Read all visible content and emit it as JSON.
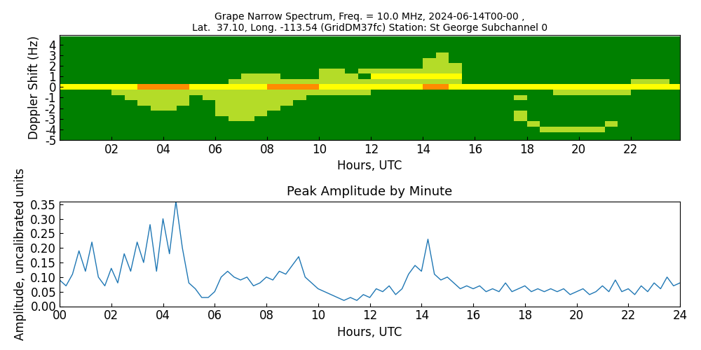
{
  "chart_data": [
    {
      "type": "heatmap",
      "title": "Grape Narrow Spectrum, Freq. = 10.0 MHz, 2024-06-14T00-00 ,\nLat.  37.10, Long. -113.54 (GridDM37fc) Station: St George Subchannel 0",
      "x_label": "Hours, UTC",
      "y_label": "Doppler Shift (Hz)",
      "x": [
        0.25,
        0.75,
        1.25,
        1.75,
        2.25,
        2.75,
        3.25,
        3.75,
        4.25,
        4.75,
        5.25,
        5.75,
        6.25,
        6.75,
        7.25,
        7.75,
        8.25,
        8.75,
        9.25,
        9.75,
        10.25,
        10.75,
        11.25,
        11.75,
        12.25,
        12.75,
        13.25,
        13.75,
        14.25,
        14.75,
        15.25,
        15.75,
        16.25,
        16.75,
        17.25,
        17.75,
        18.25,
        18.75,
        19.25,
        19.75,
        20.25,
        20.75,
        21.25,
        21.75,
        22.25,
        22.75,
        23.25,
        23.75
      ],
      "y": [
        -5,
        -4.5,
        -4,
        -3.5,
        -3,
        -2.5,
        -2,
        -1.5,
        -1,
        -0.5,
        0,
        0.5,
        1,
        1.5,
        2,
        2.5,
        3,
        3.5,
        4,
        4.5
      ],
      "value_range": [
        0,
        3
      ],
      "cells": [
        [
          0,
          0,
          0,
          0,
          0,
          0,
          0,
          0,
          0,
          0,
          0,
          0,
          0,
          0,
          0,
          0,
          0,
          0,
          0,
          0,
          0,
          0,
          0,
          0,
          0,
          0,
          0,
          0,
          0,
          0,
          0,
          0,
          0,
          0,
          0,
          0,
          0,
          0,
          0,
          0,
          0,
          0,
          0,
          0,
          0,
          0,
          0,
          0
        ],
        [
          0,
          0,
          0,
          0,
          0,
          0,
          0,
          0,
          0,
          0,
          0,
          0,
          0,
          0,
          0,
          0,
          0,
          0,
          0,
          0,
          0,
          0,
          0,
          0,
          0,
          0,
          0,
          0,
          0,
          0,
          0,
          0,
          0,
          0,
          0,
          0,
          0,
          0,
          0,
          0,
          0,
          0,
          0,
          0,
          0,
          0,
          0,
          0
        ],
        [
          0,
          0,
          0,
          0,
          0,
          0,
          0,
          0,
          0,
          0,
          0,
          0,
          0,
          0,
          0,
          0,
          0,
          0,
          0,
          0,
          0,
          0,
          0,
          0,
          0,
          0,
          0,
          0,
          0,
          0,
          0,
          0,
          0,
          0,
          0,
          0,
          0,
          1,
          1,
          1,
          1,
          1,
          0,
          0,
          0,
          0,
          0,
          0
        ],
        [
          0,
          0,
          0,
          0,
          0,
          0,
          0,
          0,
          0,
          0,
          0,
          0,
          0,
          0,
          0,
          0,
          0,
          0,
          0,
          0,
          0,
          0,
          0,
          0,
          0,
          0,
          0,
          0,
          0,
          0,
          0,
          0,
          0,
          0,
          0,
          0,
          1,
          0,
          0,
          0,
          0,
          0,
          1,
          0,
          0,
          0,
          0,
          0
        ],
        [
          0,
          0,
          0,
          0,
          0,
          0,
          0,
          0,
          0,
          0,
          0,
          0,
          0,
          1,
          1,
          0,
          0,
          0,
          0,
          0,
          0,
          0,
          0,
          0,
          0,
          0,
          0,
          0,
          0,
          0,
          0,
          0,
          0,
          0,
          0,
          1,
          0,
          0,
          0,
          0,
          0,
          0,
          0,
          0,
          0,
          0,
          0,
          0
        ],
        [
          0,
          0,
          0,
          0,
          0,
          0,
          0,
          0,
          0,
          0,
          0,
          0,
          1,
          1,
          1,
          1,
          0,
          0,
          0,
          0,
          0,
          0,
          0,
          0,
          0,
          0,
          0,
          0,
          0,
          0,
          0,
          0,
          0,
          0,
          0,
          1,
          0,
          0,
          0,
          0,
          0,
          0,
          0,
          0,
          0,
          0,
          0,
          0
        ],
        [
          0,
          0,
          0,
          0,
          0,
          0,
          0,
          1,
          1,
          0,
          0,
          0,
          1,
          1,
          1,
          1,
          1,
          0,
          0,
          0,
          0,
          0,
          0,
          0,
          0,
          0,
          0,
          0,
          0,
          0,
          0,
          0,
          0,
          0,
          0,
          0,
          0,
          0,
          0,
          0,
          0,
          0,
          0,
          0,
          0,
          0,
          0,
          0
        ],
        [
          0,
          0,
          0,
          0,
          0,
          0,
          1,
          1,
          1,
          1,
          0,
          0,
          1,
          1,
          1,
          1,
          1,
          1,
          0,
          0,
          0,
          0,
          0,
          0,
          0,
          0,
          0,
          0,
          0,
          0,
          0,
          0,
          0,
          0,
          0,
          0,
          0,
          0,
          0,
          0,
          0,
          0,
          0,
          0,
          0,
          0,
          0,
          0
        ],
        [
          0,
          0,
          0,
          0,
          0,
          1,
          1,
          1,
          1,
          1,
          0,
          1,
          1,
          1,
          1,
          1,
          1,
          1,
          1,
          0,
          0,
          0,
          0,
          0,
          0,
          0,
          0,
          0,
          0,
          0,
          0,
          0,
          0,
          0,
          0,
          1,
          0,
          0,
          0,
          0,
          0,
          0,
          0,
          0,
          0,
          0,
          0,
          0
        ],
        [
          0,
          0,
          0,
          0,
          1,
          1,
          1,
          1,
          1,
          1,
          1,
          1,
          1,
          1,
          1,
          1,
          1,
          1,
          1,
          1,
          1,
          1,
          1,
          1,
          0,
          0,
          0,
          0,
          0,
          0,
          0,
          0,
          0,
          0,
          0,
          0,
          0,
          0,
          1,
          1,
          1,
          1,
          1,
          1,
          0,
          0,
          0,
          0
        ],
        [
          2,
          2,
          2,
          2,
          2,
          2,
          3,
          3,
          3,
          3,
          2,
          2,
          2,
          2,
          2,
          2,
          3,
          3,
          3,
          3,
          2,
          2,
          2,
          2,
          2,
          2,
          2,
          2,
          3,
          3,
          2,
          2,
          2,
          2,
          2,
          2,
          2,
          2,
          2,
          2,
          2,
          2,
          2,
          2,
          2,
          2,
          2,
          2
        ],
        [
          0,
          0,
          0,
          0,
          0,
          0,
          0,
          0,
          0,
          0,
          0,
          0,
          0,
          1,
          1,
          1,
          1,
          1,
          1,
          1,
          1,
          1,
          1,
          1,
          1,
          1,
          1,
          1,
          1,
          1,
          1,
          0,
          0,
          0,
          0,
          0,
          0,
          0,
          0,
          0,
          0,
          0,
          0,
          0,
          1,
          1,
          1,
          0
        ],
        [
          0,
          0,
          0,
          0,
          0,
          0,
          0,
          0,
          0,
          0,
          0,
          0,
          0,
          0,
          1,
          1,
          1,
          0,
          0,
          0,
          1,
          1,
          1,
          0,
          2,
          2,
          2,
          2,
          2,
          2,
          2,
          0,
          0,
          0,
          0,
          0,
          0,
          0,
          0,
          0,
          0,
          0,
          0,
          0,
          0,
          0,
          0,
          0
        ],
        [
          0,
          0,
          0,
          0,
          0,
          0,
          0,
          0,
          0,
          0,
          0,
          0,
          0,
          0,
          0,
          0,
          0,
          0,
          0,
          0,
          1,
          1,
          0,
          1,
          1,
          1,
          1,
          1,
          1,
          1,
          1,
          0,
          0,
          0,
          0,
          0,
          0,
          0,
          0,
          0,
          0,
          0,
          0,
          0,
          0,
          0,
          0,
          0
        ],
        [
          0,
          0,
          0,
          0,
          0,
          0,
          0,
          0,
          0,
          0,
          0,
          0,
          0,
          0,
          0,
          0,
          0,
          0,
          0,
          0,
          0,
          0,
          0,
          0,
          0,
          0,
          0,
          0,
          1,
          1,
          1,
          0,
          0,
          0,
          0,
          0,
          0,
          0,
          0,
          0,
          0,
          0,
          0,
          0,
          0,
          0,
          0,
          0
        ],
        [
          0,
          0,
          0,
          0,
          0,
          0,
          0,
          0,
          0,
          0,
          0,
          0,
          0,
          0,
          0,
          0,
          0,
          0,
          0,
          0,
          0,
          0,
          0,
          0,
          0,
          0,
          0,
          0,
          1,
          1,
          0,
          0,
          0,
          0,
          0,
          0,
          0,
          0,
          0,
          0,
          0,
          0,
          0,
          0,
          0,
          0,
          0,
          0
        ],
        [
          0,
          0,
          0,
          0,
          0,
          0,
          0,
          0,
          0,
          0,
          0,
          0,
          0,
          0,
          0,
          0,
          0,
          0,
          0,
          0,
          0,
          0,
          0,
          0,
          0,
          0,
          0,
          0,
          0,
          1,
          0,
          0,
          0,
          0,
          0,
          0,
          0,
          0,
          0,
          0,
          0,
          0,
          0,
          0,
          0,
          0,
          0,
          0
        ],
        [
          0,
          0,
          0,
          0,
          0,
          0,
          0,
          0,
          0,
          0,
          0,
          0,
          0,
          0,
          0,
          0,
          0,
          0,
          0,
          0,
          0,
          0,
          0,
          0,
          0,
          0,
          0,
          0,
          0,
          0,
          0,
          0,
          0,
          0,
          0,
          0,
          0,
          0,
          0,
          0,
          0,
          0,
          0,
          0,
          0,
          0,
          0,
          0
        ],
        [
          0,
          0,
          0,
          0,
          0,
          0,
          0,
          0,
          0,
          0,
          0,
          0,
          0,
          0,
          0,
          0,
          0,
          0,
          0,
          0,
          0,
          0,
          0,
          0,
          0,
          0,
          0,
          0,
          0,
          0,
          0,
          0,
          0,
          0,
          0,
          0,
          0,
          0,
          0,
          0,
          0,
          0,
          0,
          0,
          0,
          0,
          0,
          0
        ],
        [
          0,
          0,
          0,
          0,
          0,
          0,
          0,
          0,
          0,
          0,
          0,
          0,
          0,
          0,
          0,
          0,
          0,
          0,
          0,
          0,
          0,
          0,
          0,
          0,
          0,
          0,
          0,
          0,
          0,
          0,
          0,
          0,
          0,
          0,
          0,
          0,
          0,
          0,
          0,
          0,
          0,
          0,
          0,
          0,
          0,
          0,
          0,
          0
        ]
      ],
      "xlim": [
        0,
        23.9
      ],
      "ylim": [
        -5,
        4.9
      ],
      "xticks": [
        {
          "value": 2,
          "label": "02"
        },
        {
          "value": 4,
          "label": "04"
        },
        {
          "value": 6,
          "label": "06"
        },
        {
          "value": 8,
          "label": "08"
        },
        {
          "value": 10,
          "label": "10"
        },
        {
          "value": 12,
          "label": "12"
        },
        {
          "value": 14,
          "label": "14"
        },
        {
          "value": 16,
          "label": "16"
        },
        {
          "value": 18,
          "label": "18"
        },
        {
          "value": 20,
          "label": "20"
        },
        {
          "value": 22,
          "label": "22"
        }
      ],
      "yticks": [
        -5,
        -4,
        -3,
        -2,
        -1,
        0,
        1,
        2,
        3,
        4
      ]
    },
    {
      "type": "line",
      "title": "Peak Amplitude by Minute",
      "x_label": "Hours, UTC",
      "y_label": "Amplitude, uncalibrated units",
      "color": "#1f77b4",
      "x": [
        0,
        0.25,
        0.5,
        0.75,
        1,
        1.25,
        1.5,
        1.75,
        2,
        2.25,
        2.5,
        2.75,
        3,
        3.25,
        3.5,
        3.75,
        4,
        4.25,
        4.5,
        4.75,
        5,
        5.25,
        5.5,
        5.75,
        6,
        6.25,
        6.5,
        6.75,
        7,
        7.25,
        7.5,
        7.75,
        8,
        8.25,
        8.5,
        8.75,
        9,
        9.25,
        9.5,
        9.75,
        10,
        10.25,
        10.5,
        10.75,
        11,
        11.25,
        11.5,
        11.75,
        12,
        12.25,
        12.5,
        12.75,
        13,
        13.25,
        13.5,
        13.75,
        14,
        14.25,
        14.5,
        14.75,
        15,
        15.25,
        15.5,
        15.75,
        16,
        16.25,
        16.5,
        16.75,
        17,
        17.25,
        17.5,
        17.75,
        18,
        18.25,
        18.5,
        18.75,
        19,
        19.25,
        19.5,
        19.75,
        20,
        20.25,
        20.5,
        20.75,
        21,
        21.25,
        21.5,
        21.75,
        22,
        22.25,
        22.5,
        22.75,
        23,
        23.25,
        23.5,
        23.75,
        24
      ],
      "values": [
        0.09,
        0.07,
        0.11,
        0.19,
        0.12,
        0.22,
        0.1,
        0.07,
        0.13,
        0.08,
        0.18,
        0.12,
        0.22,
        0.15,
        0.28,
        0.12,
        0.3,
        0.18,
        0.36,
        0.2,
        0.08,
        0.06,
        0.03,
        0.03,
        0.05,
        0.1,
        0.12,
        0.1,
        0.09,
        0.1,
        0.07,
        0.08,
        0.1,
        0.09,
        0.12,
        0.11,
        0.14,
        0.17,
        0.1,
        0.08,
        0.06,
        0.05,
        0.04,
        0.03,
        0.02,
        0.03,
        0.02,
        0.04,
        0.03,
        0.06,
        0.05,
        0.07,
        0.04,
        0.06,
        0.11,
        0.14,
        0.12,
        0.23,
        0.11,
        0.09,
        0.1,
        0.08,
        0.06,
        0.07,
        0.06,
        0.07,
        0.05,
        0.06,
        0.05,
        0.08,
        0.05,
        0.06,
        0.07,
        0.05,
        0.06,
        0.05,
        0.06,
        0.05,
        0.06,
        0.04,
        0.05,
        0.06,
        0.04,
        0.05,
        0.07,
        0.05,
        0.09,
        0.05,
        0.06,
        0.04,
        0.07,
        0.05,
        0.08,
        0.06,
        0.1,
        0.07,
        0.08
      ],
      "xlim": [
        0,
        24
      ],
      "ylim": [
        0,
        0.36
      ],
      "xticks": [
        {
          "value": 0,
          "label": "00"
        },
        {
          "value": 2,
          "label": "02"
        },
        {
          "value": 4,
          "label": "04"
        },
        {
          "value": 6,
          "label": "06"
        },
        {
          "value": 8,
          "label": "08"
        },
        {
          "value": 10,
          "label": "10"
        },
        {
          "value": 12,
          "label": "12"
        },
        {
          "value": 14,
          "label": "14"
        },
        {
          "value": 16,
          "label": "16"
        },
        {
          "value": 18,
          "label": "18"
        },
        {
          "value": 20,
          "label": "20"
        },
        {
          "value": 22,
          "label": "22"
        },
        {
          "value": 24,
          "label": "24"
        }
      ],
      "yticks": [
        {
          "value": 0.0,
          "label": "0.00"
        },
        {
          "value": 0.05,
          "label": "0.05"
        },
        {
          "value": 0.1,
          "label": "0.10"
        },
        {
          "value": 0.15,
          "label": "0.15"
        },
        {
          "value": 0.2,
          "label": "0.20"
        },
        {
          "value": 0.25,
          "label": "0.25"
        },
        {
          "value": 0.3,
          "label": "0.30"
        },
        {
          "value": 0.35,
          "label": "0.35"
        }
      ]
    }
  ]
}
